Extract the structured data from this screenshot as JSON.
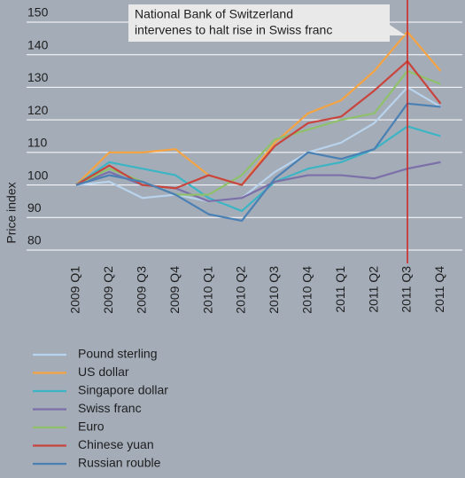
{
  "chart_data": {
    "type": "line",
    "y_label": "Price index",
    "annotation": {
      "lines": [
        "National Bank of Switzerland",
        "intervenes to halt rise in Swiss franc"
      ],
      "category": "2011 Q3"
    },
    "categories": [
      "2009 Q1",
      "2009 Q2",
      "2009 Q3",
      "2009 Q4",
      "2010 Q1",
      "2010 Q2",
      "2010 Q3",
      "2010 Q4",
      "2011 Q1",
      "2011 Q2",
      "2011 Q3",
      "2011 Q4"
    ],
    "ylim": [
      80,
      150
    ],
    "yticks": [
      80,
      90,
      100,
      110,
      120,
      130,
      140,
      150
    ],
    "grid": true,
    "series": [
      {
        "name": "Pound sterling",
        "color": "#b9d3ec",
        "values": [
          100,
          101,
          96,
          97,
          95,
          96,
          104,
          110,
          113,
          119,
          130,
          124
        ]
      },
      {
        "name": "US dollar",
        "color": "#f5a443",
        "values": [
          100,
          110,
          110,
          111,
          103,
          100,
          113,
          122,
          126,
          135,
          147,
          135
        ]
      },
      {
        "name": "Singapore dollar",
        "color": "#3bb5c4",
        "values": [
          100,
          107,
          105,
          103,
          96,
          92,
          101,
          105,
          107,
          111,
          118,
          115
        ]
      },
      {
        "name": "Swiss franc",
        "color": "#7b70a8",
        "values": [
          100,
          104,
          100,
          99,
          95,
          96,
          101,
          103,
          103,
          102,
          105,
          107
        ]
      },
      {
        "name": "Euro",
        "color": "#8fc06a",
        "values": [
          100,
          105,
          101,
          97,
          97,
          103,
          114,
          117,
          120,
          122,
          135,
          131
        ]
      },
      {
        "name": "Chinese yuan",
        "color": "#c8453d",
        "values": [
          100,
          106,
          100,
          99,
          103,
          100,
          112,
          119,
          121,
          129,
          138,
          125
        ]
      },
      {
        "name": "Russian rouble",
        "color": "#4a80b3",
        "values": [
          100,
          103,
          101,
          97,
          91,
          89,
          102,
          110,
          108,
          111,
          125,
          124
        ]
      }
    ]
  }
}
